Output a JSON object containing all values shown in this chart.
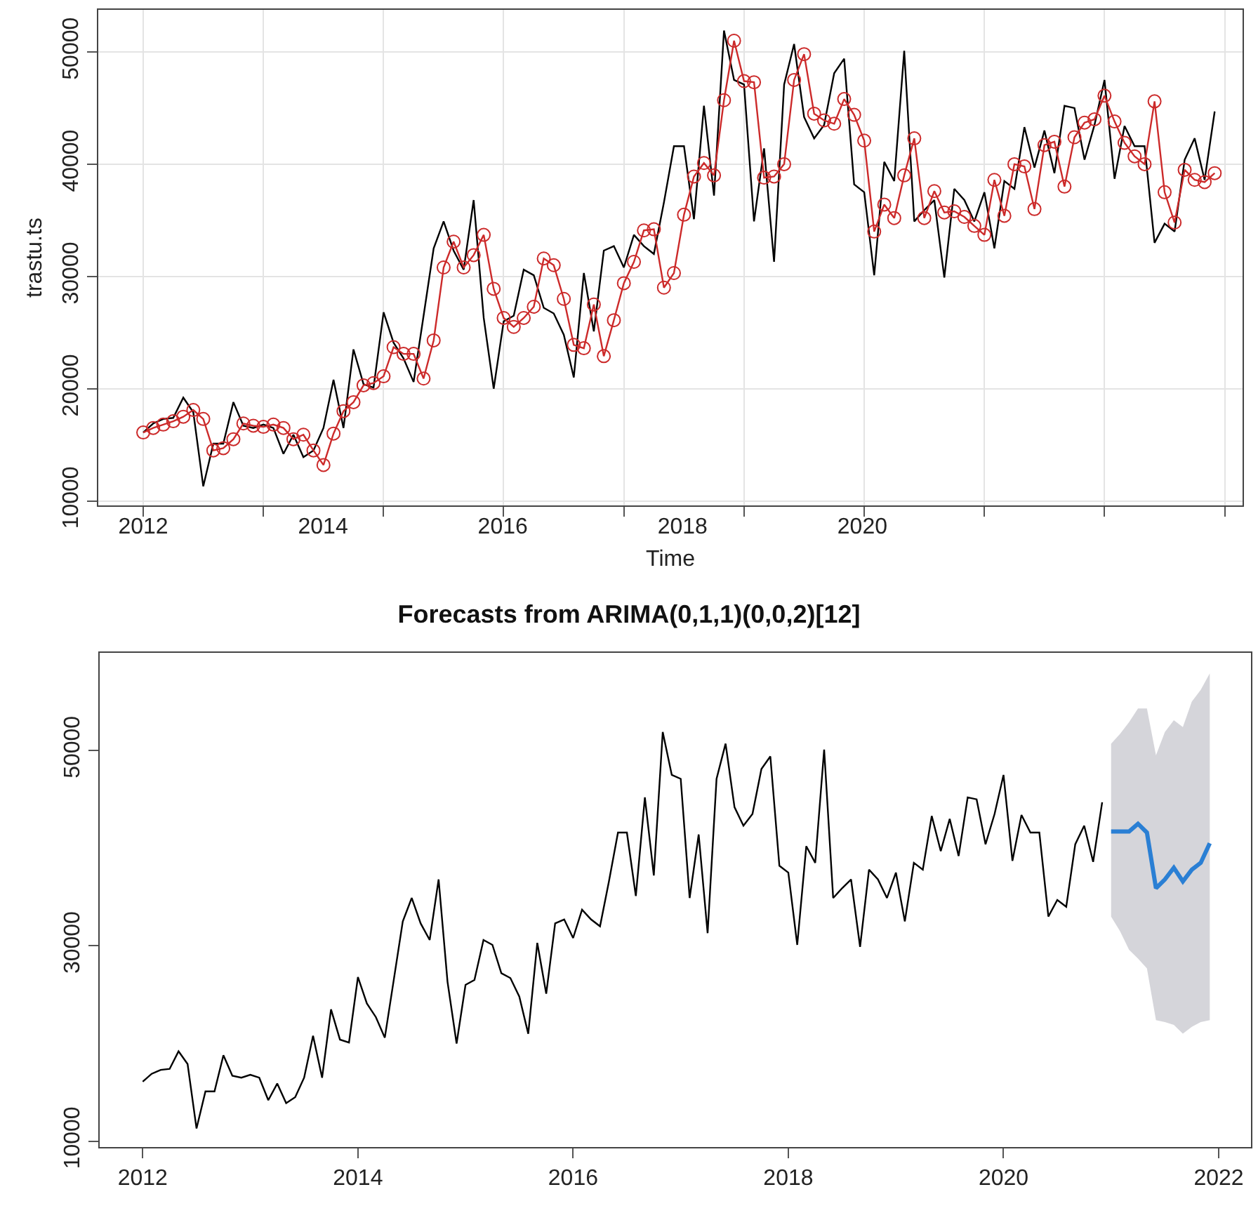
{
  "chart_data": [
    {
      "type": "line",
      "xlabel": "Time",
      "ylabel": "trastu.ts",
      "x": [
        2012,
        2012.111,
        2012.223,
        2012.334,
        2012.446,
        2012.557,
        2012.668,
        2012.78,
        2012.891,
        2013.003,
        2013.114,
        2013.225,
        2013.337,
        2013.448,
        2013.56,
        2013.671,
        2013.782,
        2013.894,
        2014.005,
        2014.117,
        2014.228,
        2014.339,
        2014.451,
        2014.562,
        2014.674,
        2014.785,
        2014.896,
        2015.008,
        2015.119,
        2015.231,
        2015.342,
        2015.453,
        2015.565,
        2015.676,
        2015.788,
        2015.899,
        2016.01,
        2016.122,
        2016.233,
        2016.345,
        2016.456,
        2016.567,
        2016.679,
        2016.79,
        2016.902,
        2017.013,
        2017.124,
        2017.236,
        2017.347,
        2017.459,
        2017.57,
        2017.681,
        2017.793,
        2017.904,
        2018.016,
        2018.127,
        2018.238,
        2018.35,
        2018.461,
        2018.573,
        2018.684,
        2018.795,
        2018.907,
        2019.018,
        2019.13,
        2019.241,
        2019.352,
        2019.464,
        2019.575,
        2019.687,
        2019.798,
        2019.909,
        2020.021,
        2020.132,
        2020.244,
        2020.355,
        2020.466,
        2020.578,
        2020.689,
        2020.801,
        2020.912,
        2021.023,
        2021.135,
        2021.246,
        2021.358,
        2021.469,
        2021.58,
        2021.692,
        2021.803,
        2021.915,
        2022.026,
        2022.137,
        2022.249,
        2022.36,
        2022.472,
        2022.583,
        2022.694,
        2022.806,
        2022.917,
        2023.029,
        2023.14,
        2023.251,
        2023.363,
        2023.474,
        2023.586,
        2023.697,
        2023.808,
        2023.92
      ],
      "series": [
        {
          "color": "#000000",
          "values": [
            16100,
            16900,
            17300,
            17400,
            19200,
            17900,
            11300,
            15100,
            15100,
            18800,
            16700,
            16500,
            16800,
            16500,
            14200,
            15900,
            13900,
            14500,
            16500,
            20800,
            16500,
            23500,
            20400,
            20100,
            26800,
            24100,
            22700,
            20600,
            26500,
            32500,
            34900,
            32300,
            30600,
            36800,
            26300,
            20000,
            26000,
            26500,
            30600,
            30100,
            27200,
            26700,
            24800,
            21000,
            30300,
            25100,
            32300,
            32700,
            30800,
            33700,
            32700,
            32000,
            36600,
            41600,
            41600,
            35100,
            45200,
            37200,
            51900,
            47500,
            47100,
            34900,
            41400,
            31300,
            47100,
            50700,
            44200,
            42300,
            43500,
            48100,
            49400,
            38200,
            37500,
            30100,
            40200,
            38500,
            50100,
            34900,
            35900,
            36800,
            29900,
            37800,
            36800,
            34900,
            37500,
            32500,
            38500,
            37800,
            43300,
            39700,
            43000,
            39200,
            45200,
            45000,
            40400,
            43500,
            47500,
            38700,
            43400,
            41600,
            41600,
            33000,
            34700,
            34000,
            40400,
            42300,
            38600,
            44700
          ]
        },
        {
          "color": "#cc2a2a",
          "marker": "circle",
          "values": [
            16100,
            16500,
            16800,
            17100,
            17500,
            18100,
            17300,
            14500,
            14700,
            15500,
            16900,
            16700,
            16600,
            16800,
            16500,
            15500,
            15900,
            14500,
            13200,
            16000,
            18000,
            18800,
            20300,
            20500,
            21100,
            23700,
            23100,
            23100,
            20900,
            24300,
            30800,
            33100,
            30800,
            31900,
            33700,
            28900,
            26300,
            25500,
            26300,
            27300,
            31600,
            31000,
            28000,
            23900,
            23600,
            27500,
            22900,
            26100,
            29400,
            31300,
            34100,
            34200,
            29000,
            30300,
            35500,
            38900,
            40100,
            39000,
            45700,
            51000,
            47400,
            47300,
            38800,
            38900,
            40000,
            47500,
            49800,
            44500,
            43900,
            43600,
            45800,
            44400,
            42100,
            34000,
            36400,
            35200,
            39000,
            42300,
            35200,
            37600,
            35700,
            35800,
            35300,
            34500,
            33700,
            38600,
            35400,
            40000,
            39800,
            36000,
            41700,
            42000,
            38000,
            42400,
            43700,
            44000,
            46100,
            43800,
            41900,
            40700,
            40000,
            45600,
            37500,
            34800,
            39500,
            38600,
            38400,
            39200
          ]
        }
      ],
      "xlim": [
        2011.5,
        2024.23
      ],
      "ylim": [
        9600,
        53750
      ],
      "xticks": [
        2012,
        2014,
        2016,
        2018,
        2020,
        {
          "value": 2012,
          "label": null
        },
        {
          "value": 2013.337,
          "label": null
        },
        {
          "value": 2014.674,
          "label": null
        },
        {
          "value": 2016.01,
          "label": null
        },
        {
          "value": 2017.347,
          "label": null
        },
        {
          "value": 2018.684,
          "label": null
        },
        {
          "value": 2020.021,
          "label": null
        },
        {
          "value": 2021.358,
          "label": null
        },
        {
          "value": 2022.694,
          "label": null
        },
        {
          "value": 2024.031,
          "label": null
        }
      ],
      "yticks": [
        10000,
        20000,
        30000,
        40000,
        50000
      ],
      "grid": true
    },
    {
      "type": "line",
      "title": "Forecasts from ARIMA(0,1,1)(0,0,2)[12]",
      "x": [
        2012,
        2012.083,
        2012.167,
        2012.25,
        2012.333,
        2012.417,
        2012.5,
        2012.583,
        2012.667,
        2012.75,
        2012.833,
        2012.917,
        2013,
        2013.083,
        2013.167,
        2013.25,
        2013.333,
        2013.417,
        2013.5,
        2013.583,
        2013.667,
        2013.75,
        2013.833,
        2013.917,
        2014,
        2014.083,
        2014.167,
        2014.25,
        2014.333,
        2014.417,
        2014.5,
        2014.583,
        2014.667,
        2014.75,
        2014.833,
        2014.917,
        2015,
        2015.083,
        2015.167,
        2015.25,
        2015.333,
        2015.417,
        2015.5,
        2015.583,
        2015.667,
        2015.75,
        2015.833,
        2015.917,
        2016,
        2016.083,
        2016.167,
        2016.25,
        2016.333,
        2016.417,
        2016.5,
        2016.583,
        2016.667,
        2016.75,
        2016.833,
        2016.917,
        2017,
        2017.083,
        2017.167,
        2017.25,
        2017.333,
        2017.417,
        2017.5,
        2017.583,
        2017.667,
        2017.75,
        2017.833,
        2017.917,
        2018,
        2018.083,
        2018.167,
        2018.25,
        2018.333,
        2018.417,
        2018.5,
        2018.583,
        2018.667,
        2018.75,
        2018.833,
        2018.917,
        2019,
        2019.083,
        2019.167,
        2019.25,
        2019.333,
        2019.417,
        2019.5,
        2019.583,
        2019.667,
        2019.75,
        2019.833,
        2019.917,
        2020,
        2020.083,
        2020.167,
        2020.25,
        2020.333,
        2020.417,
        2020.5,
        2020.583,
        2020.667,
        2020.75,
        2020.833,
        2020.917
      ],
      "series": [
        {
          "color": "#000000",
          "values": [
            16100,
            16900,
            17300,
            17400,
            19200,
            17900,
            11300,
            15100,
            15100,
            18800,
            16700,
            16500,
            16800,
            16500,
            14200,
            15900,
            13900,
            14500,
            16500,
            20800,
            16500,
            23500,
            20400,
            20100,
            26800,
            24100,
            22700,
            20600,
            26500,
            32500,
            34900,
            32300,
            30600,
            36800,
            26300,
            20000,
            26000,
            26500,
            30600,
            30100,
            27200,
            26700,
            24800,
            21000,
            30300,
            25100,
            32300,
            32700,
            30800,
            33700,
            32700,
            32000,
            36600,
            41600,
            41600,
            35100,
            45200,
            37200,
            51900,
            47500,
            47100,
            34900,
            41400,
            31300,
            47100,
            50700,
            44200,
            42300,
            43500,
            48100,
            49400,
            38200,
            37500,
            30100,
            40200,
            38500,
            50100,
            34900,
            35900,
            36800,
            29900,
            37800,
            36800,
            34900,
            37500,
            32500,
            38500,
            37800,
            43300,
            39700,
            43000,
            39200,
            45200,
            45000,
            40400,
            43500,
            47500,
            38700,
            43400,
            41600,
            41600,
            33000,
            34700,
            34000,
            40400,
            42300,
            38600,
            44700
          ]
        },
        {
          "color": "#2a7fd4",
          "x": [
            2021,
            2021.083,
            2021.167,
            2021.25,
            2021.333,
            2021.417,
            2021.5,
            2021.583,
            2021.667,
            2021.75,
            2021.833,
            2021.917
          ],
          "values": [
            41700,
            41700,
            41700,
            42500,
            41600,
            35900,
            36800,
            38000,
            36600,
            37800,
            38500,
            40500
          ],
          "lower": [
            33000,
            31500,
            29600,
            28700,
            27700,
            22400,
            22200,
            21900,
            21000,
            21700,
            22200,
            22400
          ],
          "upper": [
            50700,
            51700,
            52900,
            54300,
            54300,
            49500,
            51900,
            53100,
            52400,
            55000,
            56200,
            57900
          ]
        }
      ],
      "xlim": [
        2011.6,
        2022.3
      ],
      "ylim": [
        9400,
        60000
      ],
      "xticks": [
        2012,
        2014,
        2016,
        2018,
        2020,
        2022
      ],
      "yticks": [
        10000,
        30000,
        50000
      ],
      "grid": false
    }
  ]
}
